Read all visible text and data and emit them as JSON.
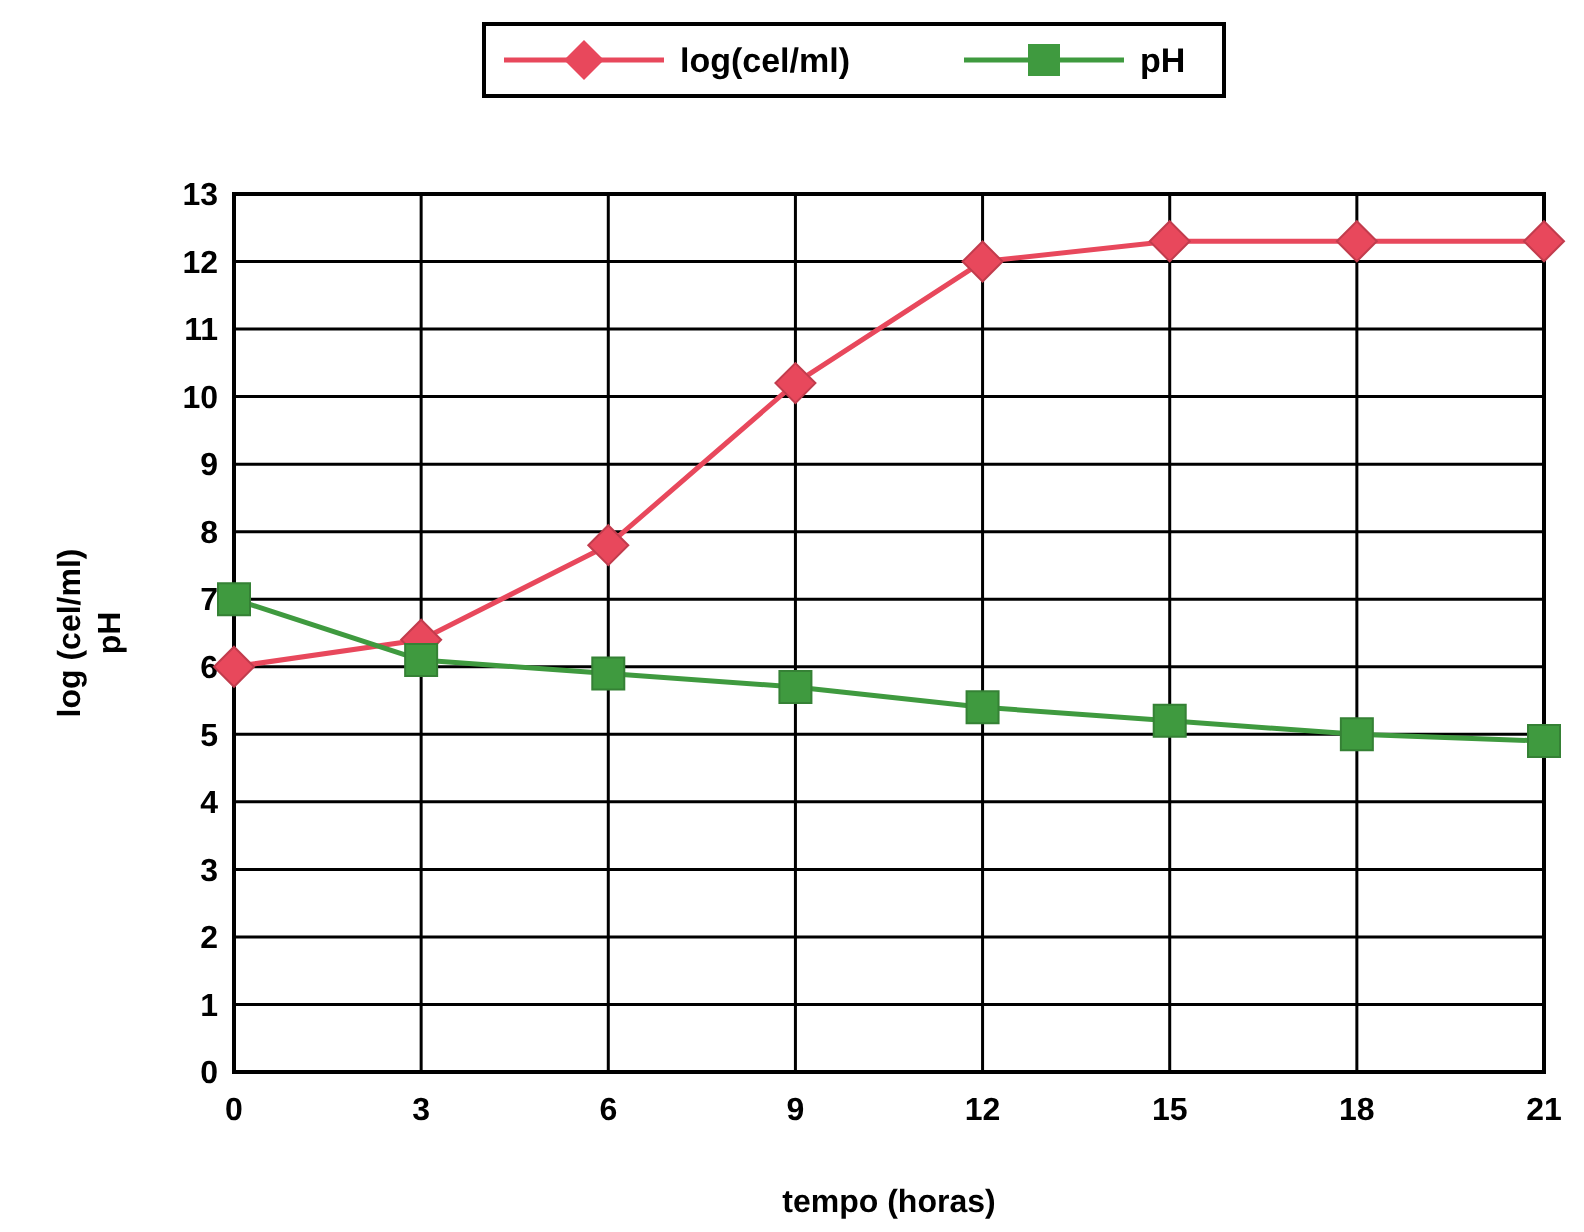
{
  "chart_data": {
    "type": "line",
    "xlabel": "tempo (horas)",
    "ylabel": "log (cel/ml)\npH",
    "x": [
      0,
      3,
      6,
      9,
      12,
      15,
      18,
      21
    ],
    "series": [
      {
        "name": "log(cel/ml)",
        "color": "#e8485c",
        "marker": "diamond",
        "values": [
          6.0,
          6.4,
          7.8,
          10.2,
          12.0,
          12.3,
          12.3,
          12.3
        ]
      },
      {
        "name": "pH",
        "color": "#3f9a3f",
        "marker": "square",
        "values": [
          7.0,
          6.1,
          5.9,
          5.7,
          5.4,
          5.2,
          5.0,
          4.9
        ]
      }
    ],
    "xlim": [
      0,
      21
    ],
    "xticks": [
      0,
      3,
      6,
      9,
      12,
      15,
      18,
      21
    ],
    "ylim": [
      0,
      13
    ],
    "yticks": [
      0,
      1,
      2,
      3,
      4,
      5,
      6,
      7,
      8,
      9,
      10,
      11,
      12,
      13
    ],
    "grid": true,
    "legend": "top",
    "line_style": "solid"
  }
}
